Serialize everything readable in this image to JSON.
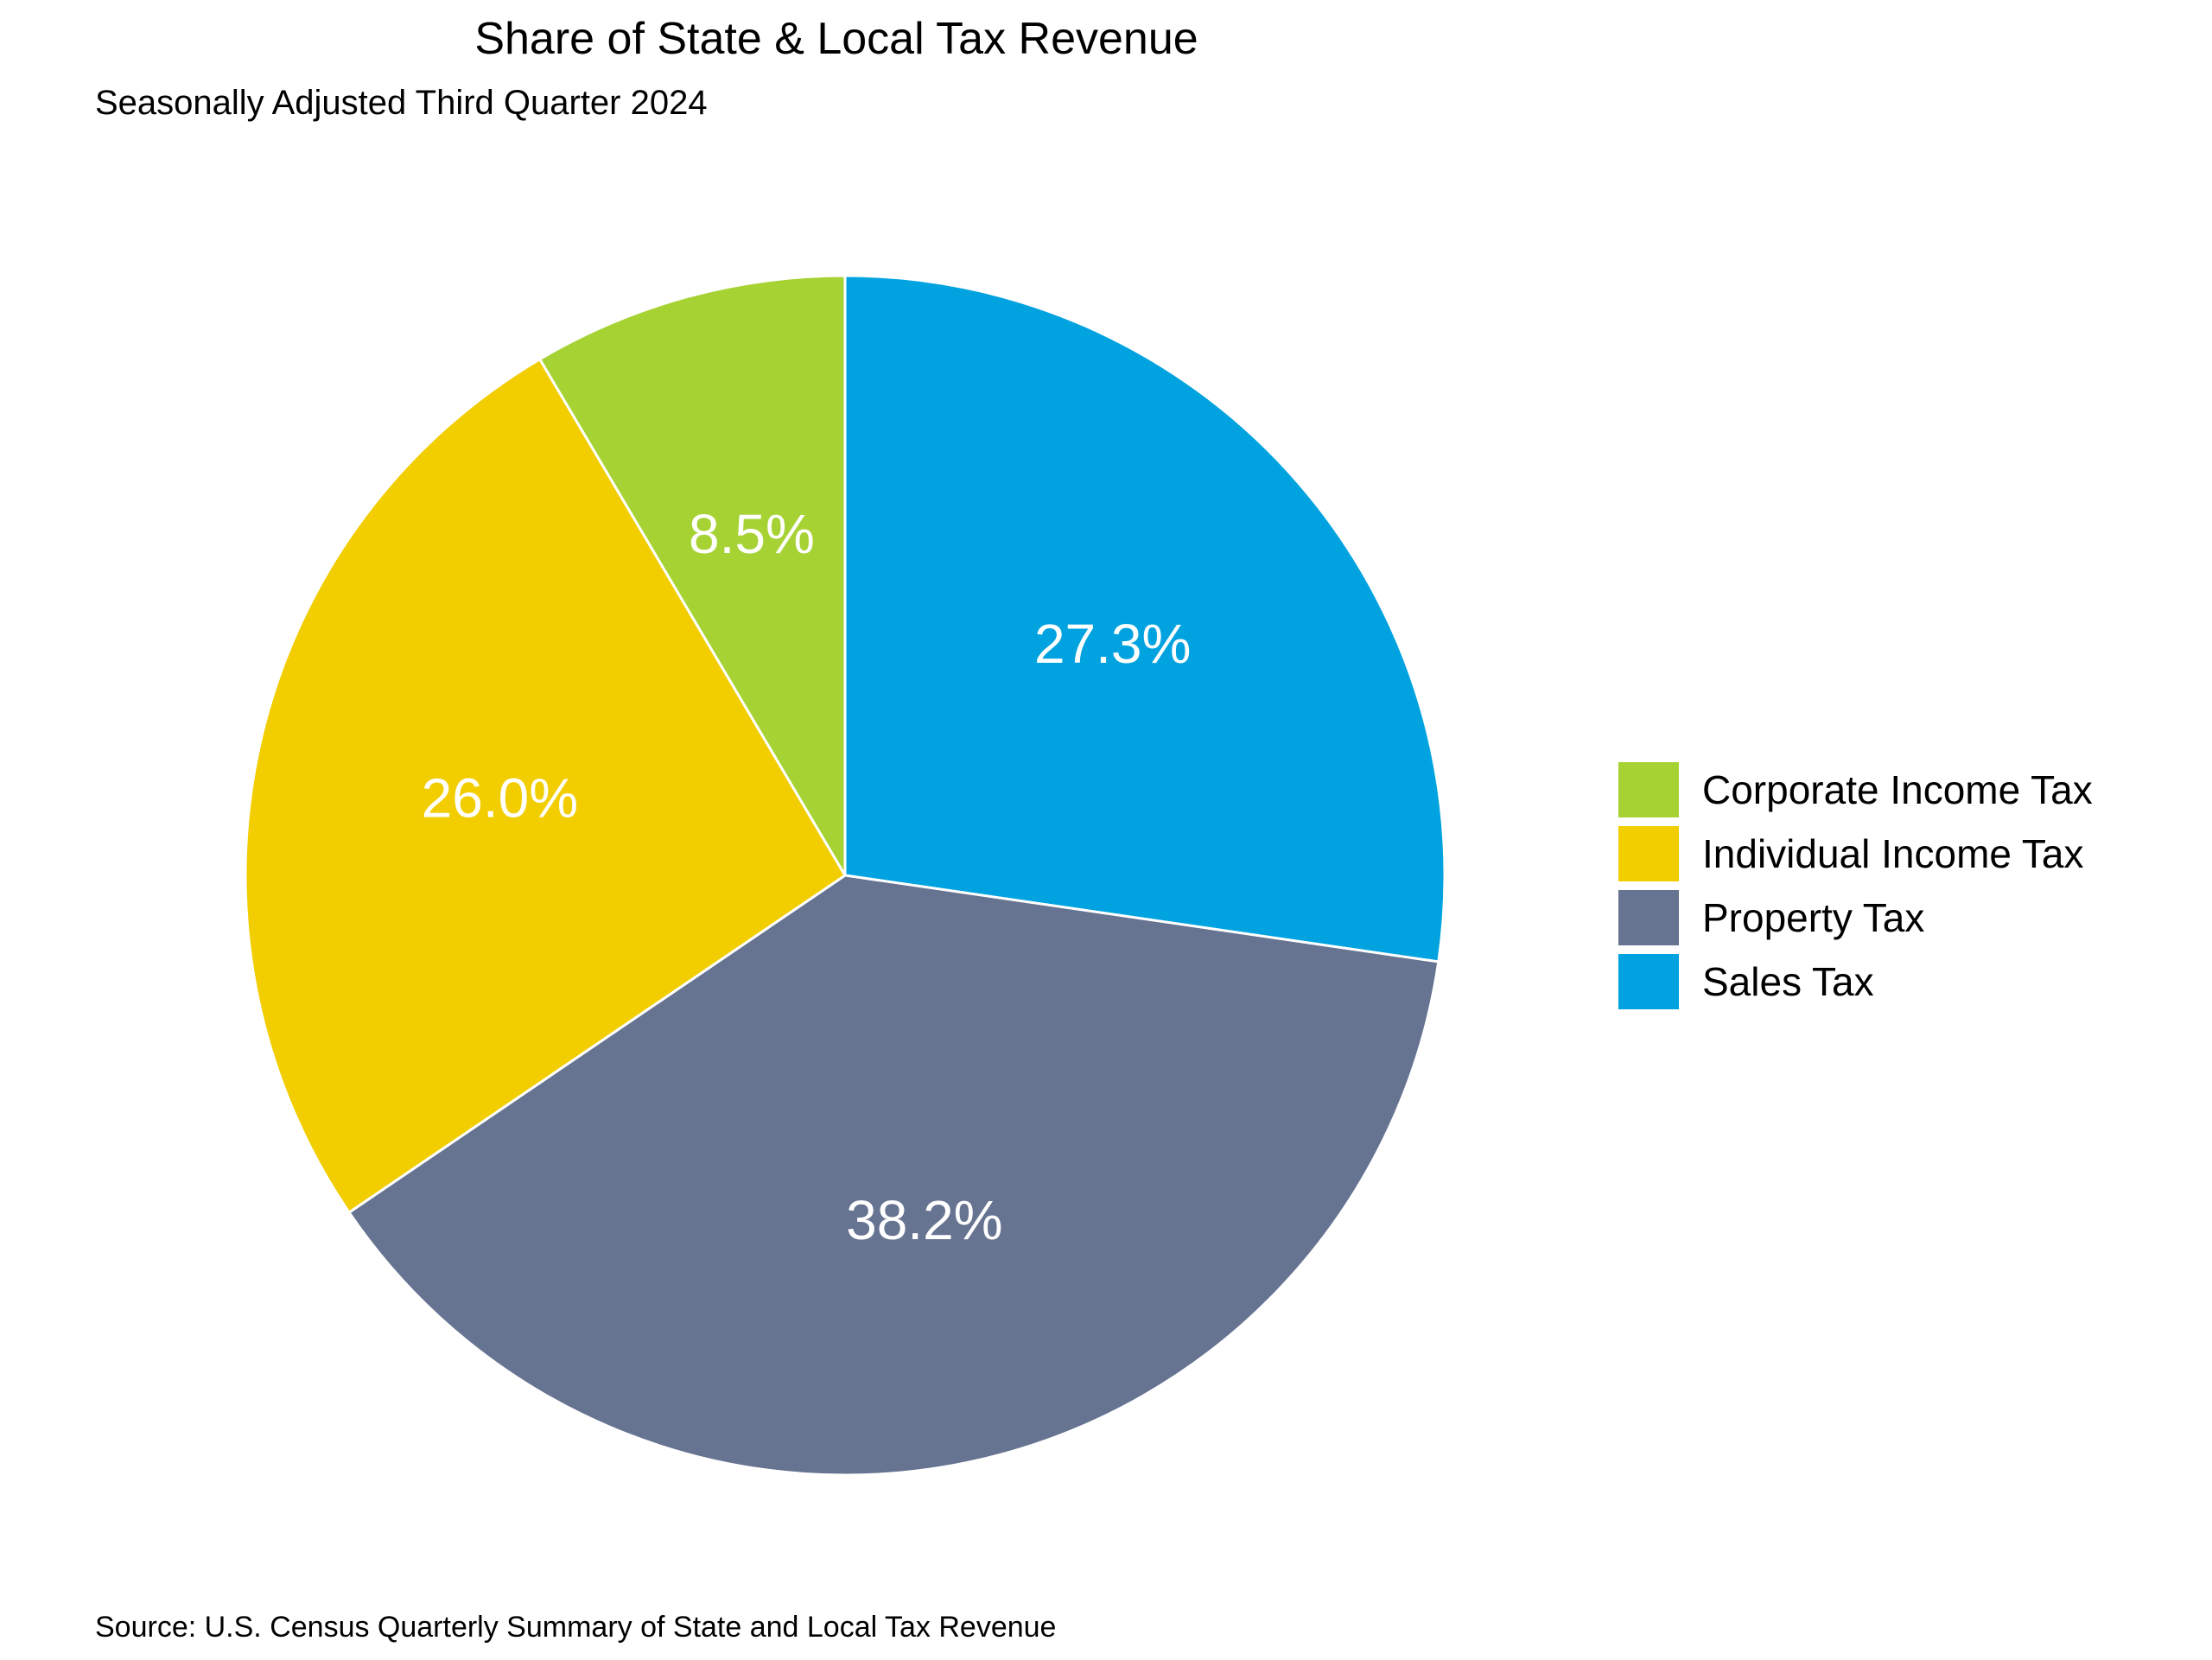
{
  "chart_data": {
    "type": "pie",
    "title": "Share of State & Local Tax Revenue",
    "subtitle": "Seasonally Adjusted Third Quarter 2024",
    "source": "Source: U.S. Census Quarterly Summary of State and Local Tax Revenue",
    "slices": [
      {
        "name": "Sales Tax",
        "value": 27.3,
        "label": "27.3%",
        "color": "#00A3E0"
      },
      {
        "name": "Property Tax",
        "value": 38.2,
        "label": "38.2%",
        "color": "#667391"
      },
      {
        "name": "Individual Income Tax",
        "value": 26.0,
        "label": "26.0%",
        "color": "#F2CD00"
      },
      {
        "name": "Corporate Income Tax",
        "value": 8.5,
        "label": "8.5%",
        "color": "#A6D234"
      }
    ],
    "legend": {
      "position": "right",
      "items": [
        {
          "name": "Corporate Income Tax",
          "color": "#A6D234"
        },
        {
          "name": "Individual Income Tax",
          "color": "#F2CD00"
        },
        {
          "name": "Property Tax",
          "color": "#667391"
        },
        {
          "name": "Sales Tax",
          "color": "#00A3E0"
        }
      ]
    }
  }
}
